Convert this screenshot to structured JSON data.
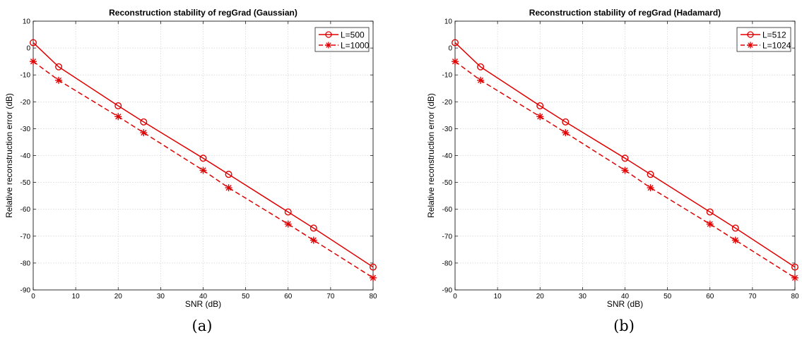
{
  "chart_data": [
    {
      "type": "line",
      "title": "Reconstruction stability of regGrad (Gaussian)",
      "xlabel": "SNR (dB)",
      "ylabel": "Relative reconstruction error (dB)",
      "xlim": [
        0,
        80
      ],
      "ylim": [
        -90,
        10
      ],
      "xticks": [
        0,
        10,
        20,
        30,
        40,
        50,
        60,
        70,
        80
      ],
      "yticks": [
        10,
        0,
        -10,
        -20,
        -30,
        -40,
        -50,
        -60,
        -70,
        -80,
        -90
      ],
      "grid": true,
      "legend_position": "top-right",
      "x": [
        0,
        6,
        20,
        26,
        40,
        46,
        60,
        66,
        80
      ],
      "series": [
        {
          "name": "L=500",
          "style": "solid",
          "marker": "circle",
          "color": "#e00000",
          "values": [
            2,
            -7,
            -21.5,
            -27.5,
            -41,
            -47,
            -61,
            -67,
            -81.5
          ]
        },
        {
          "name": "L=1000",
          "style": "dashed",
          "marker": "asterisk",
          "color": "#e00000",
          "values": [
            -5,
            -12,
            -25.5,
            -31.5,
            -45.5,
            -52,
            -65.5,
            -71.5,
            -85.5
          ]
        }
      ],
      "caption": "(a)"
    },
    {
      "type": "line",
      "title": "Reconstruction stability of regGrad (Hadamard)",
      "xlabel": "SNR (dB)",
      "ylabel": "Relative reconstruction error (dB)",
      "xlim": [
        0,
        80
      ],
      "ylim": [
        -90,
        10
      ],
      "xticks": [
        0,
        10,
        20,
        30,
        40,
        50,
        60,
        70,
        80
      ],
      "yticks": [
        10,
        0,
        -10,
        -20,
        -30,
        -40,
        -50,
        -60,
        -70,
        -80,
        -90
      ],
      "grid": true,
      "legend_position": "top-right",
      "x": [
        0,
        6,
        20,
        26,
        40,
        46,
        60,
        66,
        80
      ],
      "series": [
        {
          "name": "L=512",
          "style": "solid",
          "marker": "circle",
          "color": "#e00000",
          "values": [
            2,
            -7,
            -21.5,
            -27.5,
            -41,
            -47,
            -61,
            -67,
            -81.5
          ]
        },
        {
          "name": "L=1024",
          "style": "dashed",
          "marker": "asterisk",
          "color": "#e00000",
          "values": [
            -5,
            -12,
            -25.5,
            -31.5,
            -45.5,
            -52,
            -65.5,
            -71.5,
            -85.5
          ]
        }
      ],
      "caption": "(b)"
    }
  ]
}
